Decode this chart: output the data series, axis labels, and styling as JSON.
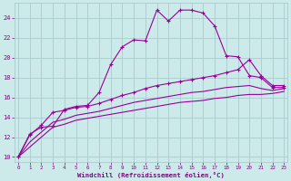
{
  "bg_color": "#cceaea",
  "grid_color": "#aacccc",
  "line_color": "#990099",
  "xlabel": "Windchill (Refroidissement éolien,°C)",
  "xlabel_color": "#880088",
  "tick_color": "#880088",
  "ylim": [
    9.5,
    25.5
  ],
  "xlim": [
    -0.3,
    23.3
  ],
  "yticks": [
    10,
    12,
    14,
    16,
    18,
    20,
    22,
    24
  ],
  "xticks": [
    0,
    1,
    2,
    3,
    4,
    5,
    6,
    7,
    8,
    9,
    10,
    11,
    12,
    13,
    14,
    15,
    16,
    17,
    18,
    19,
    20,
    21,
    22,
    23
  ],
  "line1_x": [
    0,
    1,
    2,
    3,
    4,
    5,
    6,
    7,
    8,
    9,
    10,
    11,
    12,
    13,
    14,
    15,
    16,
    17,
    18,
    19,
    20,
    21,
    22,
    23
  ],
  "line1_y": [
    10,
    12.3,
    13.0,
    13.1,
    14.8,
    15.1,
    15.2,
    16.5,
    19.3,
    21.1,
    21.8,
    21.7,
    24.8,
    23.7,
    24.8,
    24.8,
    24.5,
    23.2,
    20.2,
    20.1,
    18.2,
    18.0,
    17.0,
    17.0
  ],
  "line2_x": [
    0,
    1,
    2,
    3,
    4,
    5,
    6,
    7,
    8,
    9,
    10,
    11,
    12,
    13,
    14,
    15,
    16,
    17,
    18,
    19,
    20,
    21,
    22,
    23
  ],
  "line2_y": [
    10,
    12.2,
    13.2,
    14.5,
    14.7,
    15.0,
    15.1,
    15.4,
    15.8,
    16.2,
    16.5,
    16.9,
    17.2,
    17.4,
    17.6,
    17.8,
    18.0,
    18.2,
    18.5,
    18.8,
    19.8,
    18.2,
    17.2,
    17.2
  ],
  "line3_x": [
    0,
    1,
    2,
    3,
    4,
    5,
    6,
    7,
    8,
    9,
    10,
    11,
    12,
    13,
    14,
    15,
    16,
    17,
    18,
    19,
    20,
    21,
    22,
    23
  ],
  "line3_y": [
    10,
    11.5,
    12.5,
    13.5,
    13.8,
    14.2,
    14.4,
    14.6,
    14.9,
    15.2,
    15.5,
    15.7,
    15.9,
    16.1,
    16.3,
    16.5,
    16.6,
    16.8,
    17.0,
    17.1,
    17.2,
    16.9,
    16.7,
    16.9
  ],
  "line4_x": [
    0,
    1,
    2,
    3,
    4,
    5,
    6,
    7,
    8,
    9,
    10,
    11,
    12,
    13,
    14,
    15,
    16,
    17,
    18,
    19,
    20,
    21,
    22,
    23
  ],
  "line4_y": [
    10,
    11.0,
    12.0,
    13.0,
    13.3,
    13.7,
    13.9,
    14.1,
    14.3,
    14.5,
    14.7,
    14.9,
    15.1,
    15.3,
    15.5,
    15.6,
    15.7,
    15.9,
    16.0,
    16.2,
    16.3,
    16.3,
    16.4,
    16.6
  ]
}
